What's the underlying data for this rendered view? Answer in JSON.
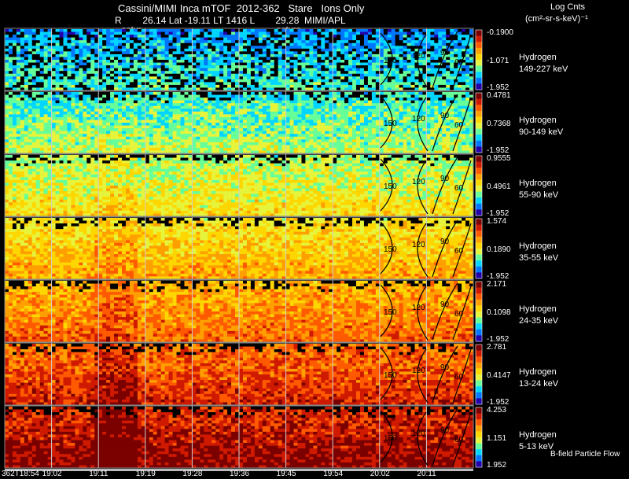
{
  "header": {
    "title": "Cassini/MIMI Inca mTOF  2012-362   Stare   Ions Only",
    "subline": "R        26.14 Lat -19.11 LT 1416 L        29.28  MIMI/APL",
    "satur_label": "satur",
    "saturo_label": "saturo"
  },
  "units": {
    "title": "Log Cnts",
    "sub": "(cm²-sr-s-keV)⁻¹"
  },
  "chart_data": {
    "type": "heatmap",
    "time_ticks": [
      "362T18:54",
      "19:02",
      "19:11",
      "19:19",
      "19:28",
      "19:36",
      "19:45",
      "19:54",
      "20:02",
      "20:11"
    ],
    "panels": [
      {
        "species": "Hydrogen",
        "range": "149-227 keV",
        "cbar_max": "-0.1900",
        "cbar_mid": "-1.071",
        "cbar_min": "-1.952"
      },
      {
        "species": "Hydrogen",
        "range": "90-149 keV",
        "cbar_max": "0.4781",
        "cbar_mid": "0.7368",
        "cbar_min": "-1.952"
      },
      {
        "species": "Hydrogen",
        "range": "55-90 keV",
        "cbar_max": "0.9555",
        "cbar_mid": "0.4961",
        "cbar_min": "-1.952"
      },
      {
        "species": "Hydrogen",
        "range": "35-55 keV",
        "cbar_max": "1.574",
        "cbar_mid": "0.1890",
        "cbar_min": "-1.952"
      },
      {
        "species": "Hydrogen",
        "range": "24-35 keV",
        "cbar_max": "2.171",
        "cbar_mid": "0.1098",
        "cbar_min": "-1.952"
      },
      {
        "species": "Hydrogen",
        "range": "13-24 keV",
        "cbar_max": "2.781",
        "cbar_mid": "0.4147",
        "cbar_min": "-1.952"
      },
      {
        "species": "Hydrogen",
        "range": "5-13 keV",
        "cbar_max": "4.253",
        "cbar_mid": "1.151",
        "cbar_min": "1.952"
      }
    ],
    "angle_labels": [
      "150",
      "120",
      "90",
      "60"
    ],
    "footer": "B-field Particle Flow",
    "colors": {
      "background": "#000000",
      "grid": "#ffffff",
      "scale": [
        "#7b0000",
        "#d01a00",
        "#ff5a00",
        "#ffa000",
        "#ffd700",
        "#e6f53c",
        "#66ff99",
        "#00d6ff",
        "#0077ff",
        "#2200aa"
      ]
    }
  }
}
